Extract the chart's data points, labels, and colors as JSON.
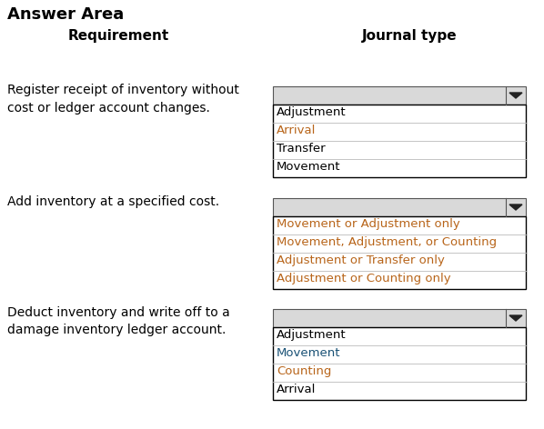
{
  "title": "Answer Area",
  "col1_header": "Requirement",
  "col2_header": "Journal type",
  "bg_color": "#ffffff",
  "header_color": "#000000",
  "dropdown_bg": "#d9d9d9",
  "dropdown_border": "#555555",
  "list_border": "#000000",
  "list_bg": "#ffffff",
  "text_color_black": "#000000",
  "text_color_blue": "#1a5276",
  "text_color_orange": "#b8651a",
  "rows": [
    {
      "requirement": "Register receipt of inventory without\ncost or ledger account changes.",
      "items": [
        "Adjustment",
        "Arrival",
        "Transfer",
        "Movement"
      ],
      "item_colors": [
        "#000000",
        "#b8651a",
        "#000000",
        "#000000"
      ]
    },
    {
      "requirement": "Add inventory at a specified cost.",
      "items": [
        "Movement or Adjustment only",
        "Movement, Adjustment, or Counting",
        "Adjustment or Transfer only",
        "Adjustment or Counting only"
      ],
      "item_colors": [
        "#b8651a",
        "#b8651a",
        "#b8651a",
        "#b8651a"
      ]
    },
    {
      "requirement": "Deduct inventory and write off to a\ndamage inventory ledger account.",
      "items": [
        "Adjustment",
        "Movement",
        "Counting",
        "Arrival"
      ],
      "item_colors": [
        "#000000",
        "#1a5276",
        "#b8651a",
        "#000000"
      ]
    }
  ]
}
